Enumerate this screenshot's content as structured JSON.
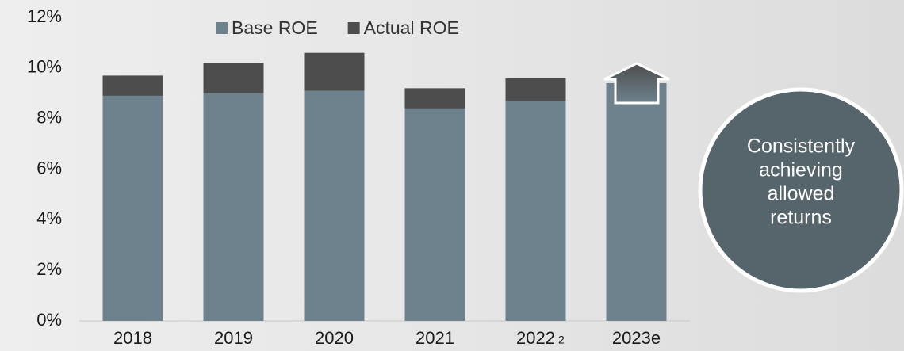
{
  "chart_data": {
    "type": "stacked_bar",
    "categories": [
      "2018",
      "2019",
      "2020",
      "2021",
      "2022",
      "2023e"
    ],
    "category_notes": [
      null,
      null,
      null,
      null,
      "2",
      null
    ],
    "series": [
      {
        "name": "Base ROE",
        "color": "#6e828d",
        "values": [
          8.9,
          9.0,
          9.1,
          8.4,
          8.7,
          9.4
        ]
      },
      {
        "name": "Actual ROE",
        "color": "#4d4d4d",
        "values": [
          0.8,
          1.2,
          1.5,
          0.8,
          0.9,
          null
        ]
      }
    ],
    "ylim": [
      0,
      12
    ],
    "yticks": [
      {
        "value": 0,
        "label": "0%"
      },
      {
        "value": 2,
        "label": "2%"
      },
      {
        "value": 4,
        "label": "4%"
      },
      {
        "value": 6,
        "label": "6%"
      },
      {
        "value": 8,
        "label": "8%"
      },
      {
        "value": 10,
        "label": "10%"
      },
      {
        "value": 12,
        "label": "12%"
      }
    ],
    "legend": "top",
    "annotation": [
      "Consistently",
      "achieving",
      "allowed",
      "returns"
    ]
  }
}
